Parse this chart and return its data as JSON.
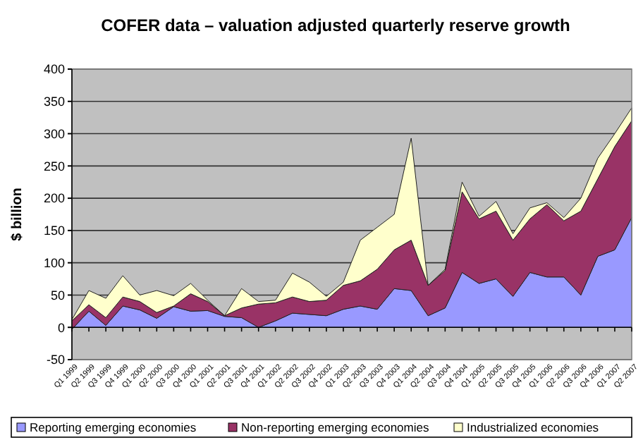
{
  "chart_data": {
    "type": "area",
    "stacked": true,
    "title": "COFER data – valuation adjusted quarterly reserve growth",
    "ylabel": "$ billion",
    "categories": [
      "Q1 1999",
      "Q2 1999",
      "Q3 1999",
      "Q4 1999",
      "Q1 2000",
      "Q2 2000",
      "Q3 2000",
      "Q4 2000",
      "Q1 2001",
      "Q2 2001",
      "Q3 2001",
      "Q4 2001",
      "Q1 2002",
      "Q2 2002",
      "Q3 2002",
      "Q4 2002",
      "Q1 2003",
      "Q2 2003",
      "Q3 2003",
      "Q4 2003",
      "Q1 2004",
      "Q2 2004",
      "Q3 2004",
      "Q4 2004",
      "Q1 2005",
      "Q2 2005",
      "Q3 2005",
      "Q4 2005",
      "Q1 2006",
      "Q2 2006",
      "Q3 2006",
      "Q4 2006",
      "Q1 2007",
      "Q2 2007"
    ],
    "series": [
      {
        "name": "Reporting emerging economies",
        "color": "#9999ff",
        "values": [
          -3,
          25,
          3,
          33,
          27,
          14,
          32,
          25,
          26,
          17,
          15,
          0,
          10,
          22,
          20,
          18,
          28,
          33,
          28,
          60,
          57,
          18,
          30,
          85,
          68,
          75,
          48,
          85,
          78,
          78,
          50,
          110,
          120,
          170
        ]
      },
      {
        "name": "Non-reporting emerging economies",
        "color": "#993366",
        "values": [
          13,
          10,
          12,
          14,
          13,
          9,
          1,
          27,
          14,
          1,
          15,
          36,
          28,
          25,
          20,
          24,
          37,
          39,
          62,
          60,
          78,
          47,
          58,
          125,
          100,
          105,
          87,
          83,
          112,
          87,
          130,
          120,
          160,
          150
        ]
      },
      {
        "name": "Industrialized economies",
        "color": "#ffffcc",
        "values": [
          2,
          22,
          30,
          33,
          10,
          34,
          16,
          16,
          2,
          0,
          30,
          4,
          4,
          37,
          30,
          6,
          5,
          63,
          65,
          55,
          158,
          0,
          2,
          15,
          4,
          15,
          10,
          17,
          3,
          5,
          20,
          32,
          20,
          20
        ]
      }
    ],
    "ylim": [
      -50,
      400
    ],
    "yticks": [
      -50,
      0,
      50,
      100,
      150,
      200,
      250,
      300,
      350,
      400
    ],
    "grid": "y",
    "legend": "bottom"
  }
}
